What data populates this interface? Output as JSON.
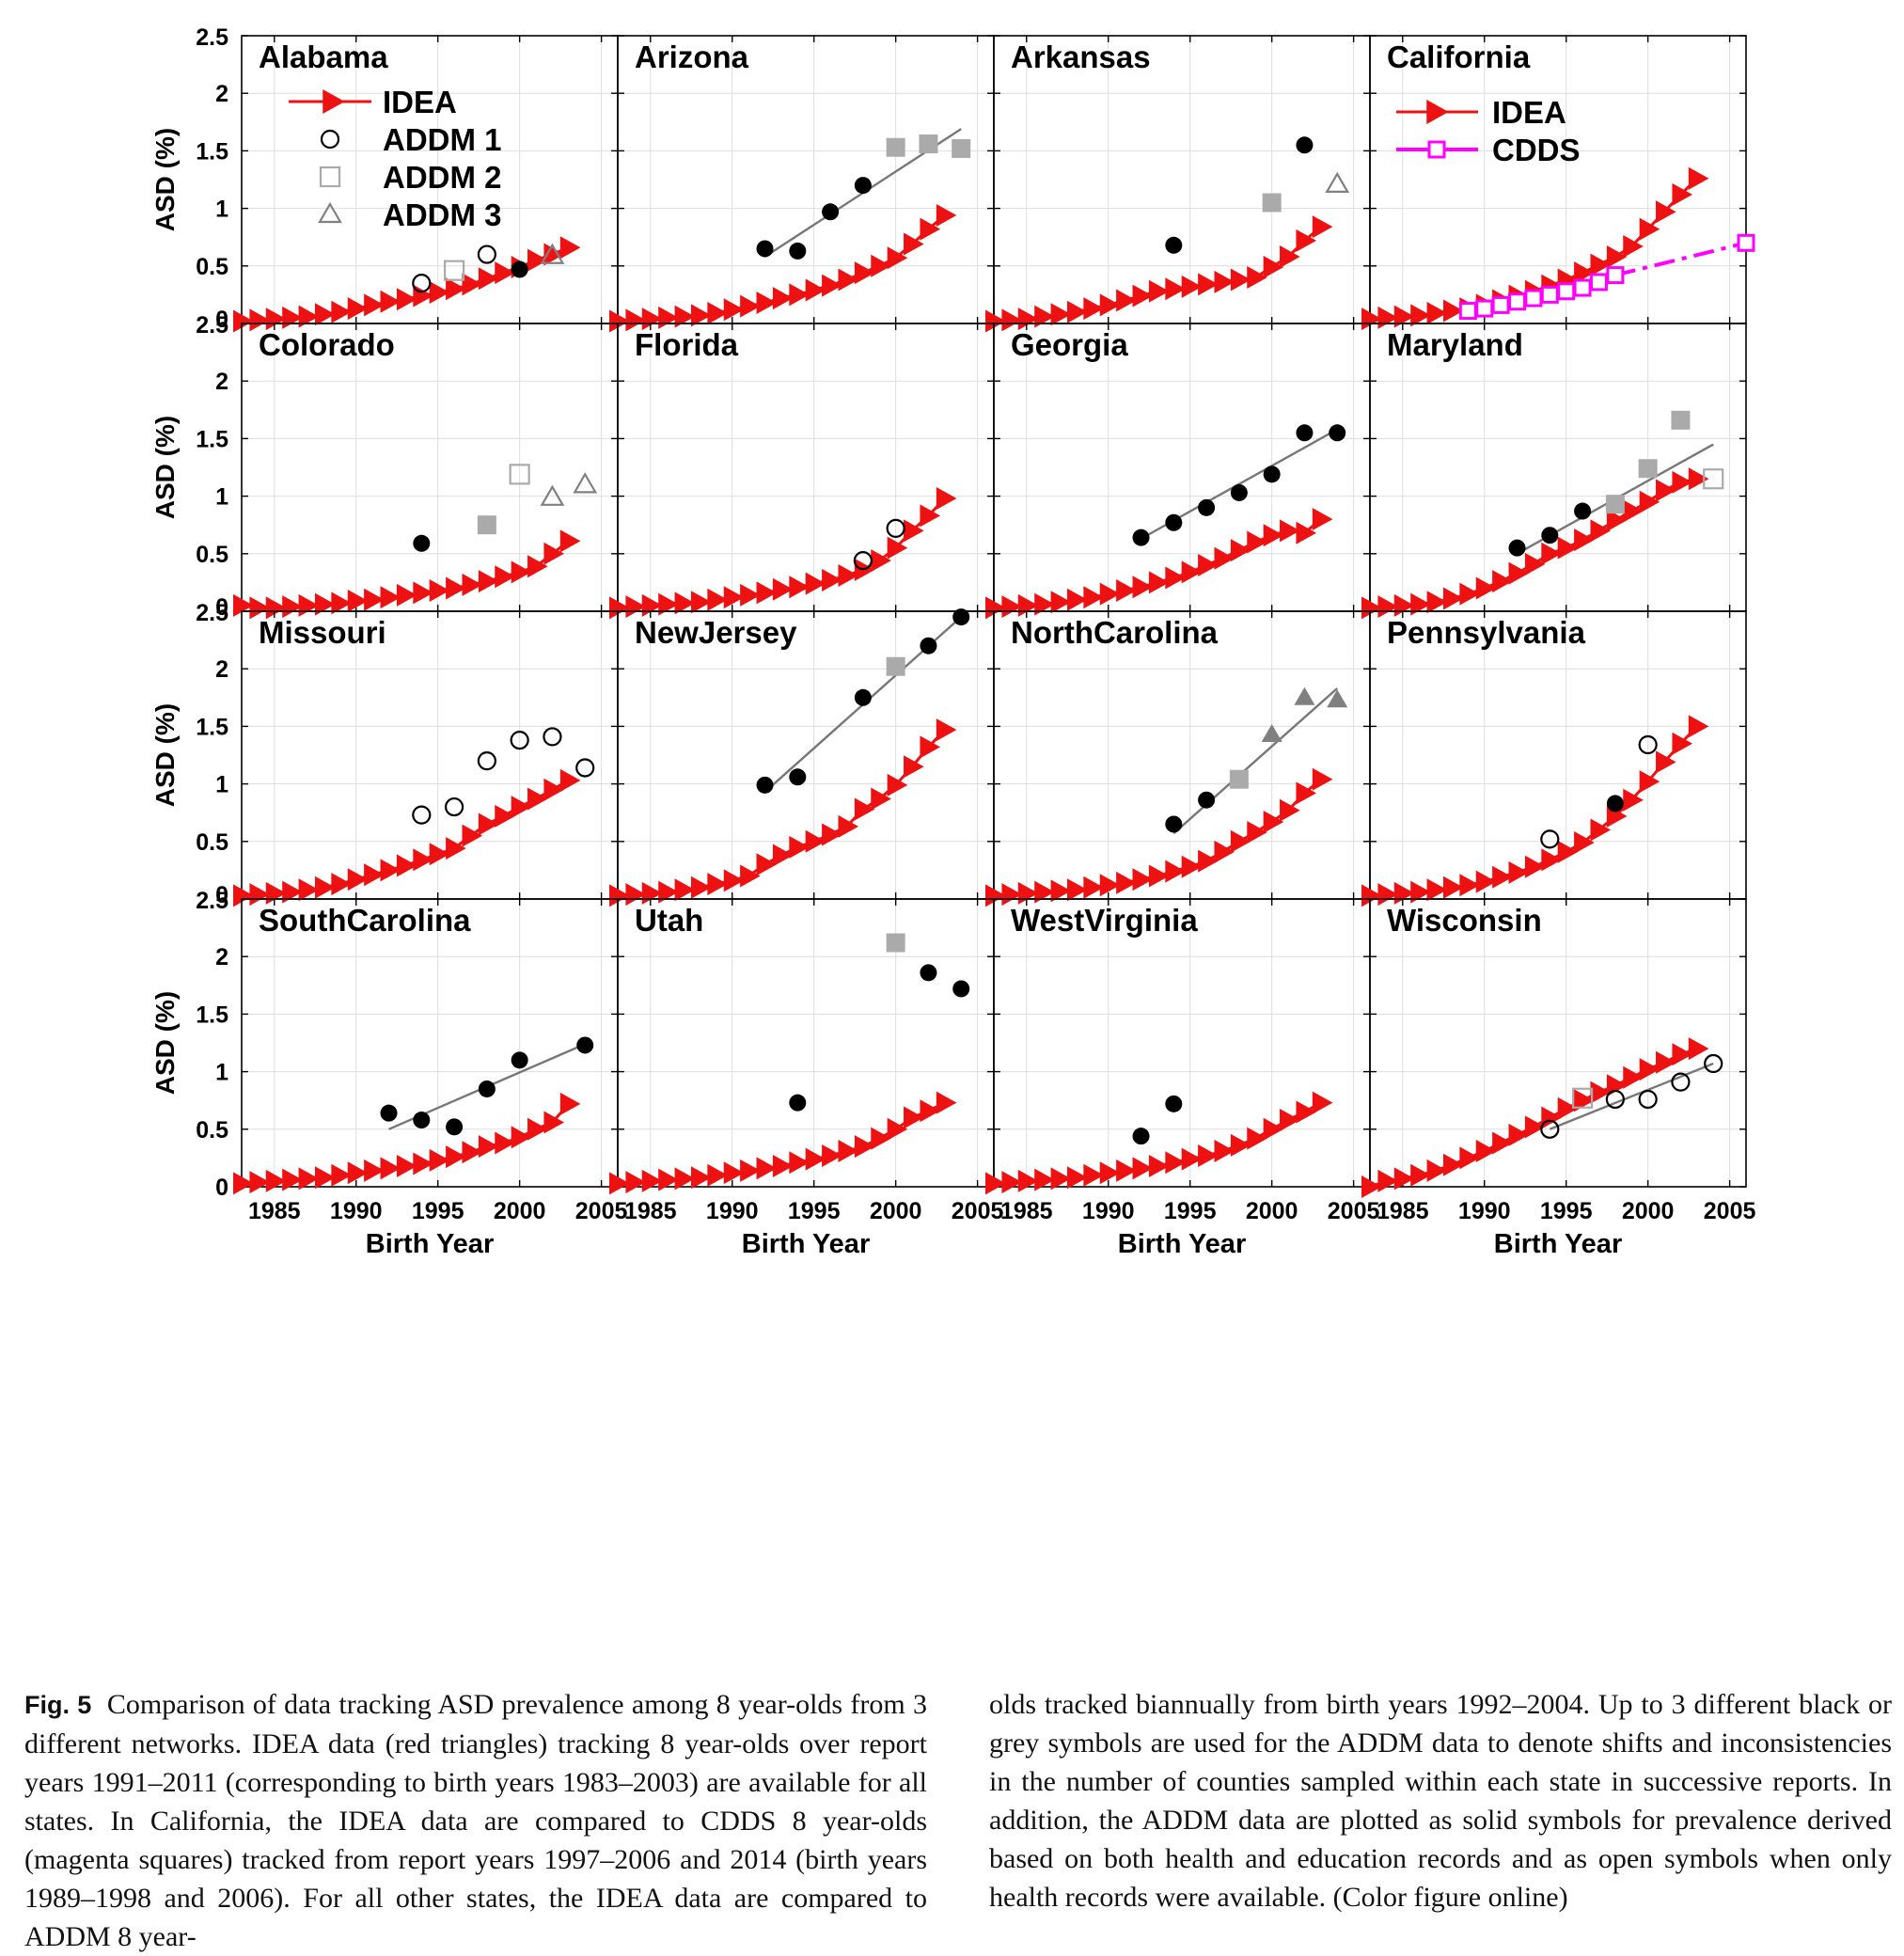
{
  "figure": {
    "label": "Fig. 5",
    "caption_left": "Comparison of data tracking ASD prevalence among 8 year-olds from 3 different networks. IDEA data (red triangles) tracking 8 year-olds over report years 1991–2011 (corresponding to birth years 1983–2003) are available for all states. In California, the IDEA data are compared to CDDS 8 year-olds (magenta squares) tracked from report years 1997–2006 and 2014 (birth years 1989–1998 and 2006). For all other states, the IDEA data are compared to ADDM 8 year-",
    "caption_right": "olds tracked biannually from birth years 1992–2004. Up to 3 different black or grey symbols are used for the ADDM data to denote shifts and inconsistencies in the number of counties sampled within each state in successive reports. In addition, the ADDM data are plotted as solid symbols for prevalence derived based on both health and education records and as open symbols when only health records were available. (Color figure online)"
  },
  "colors": {
    "idea": "#ee1111",
    "cdds": "#ff00ff",
    "addm1": "#000000",
    "addm2": "#aaaaaa",
    "addm3": "#808080",
    "trend": "#777777",
    "grid": "#dddddd"
  },
  "chart_data": {
    "type": "scatter",
    "layout": "4x4 small multiples",
    "xlabel": "Birth Year",
    "ylabel": "ASD (%)",
    "xlim": [
      1983,
      2006
    ],
    "ylim": [
      0,
      2.5
    ],
    "xticks": [
      "1985",
      "1990",
      "1995",
      "2000",
      "2005"
    ],
    "yticks": [
      "0",
      "0.5",
      "1",
      "1.5",
      "2",
      "2.5"
    ],
    "legend_labels": {
      "idea": "IDEA",
      "addm1": "ADDM 1",
      "addm2": "ADDM 2",
      "addm3": "ADDM 3",
      "cdds": "CDDS"
    },
    "idea_years": [
      1983,
      1984,
      1985,
      1986,
      1987,
      1988,
      1989,
      1990,
      1991,
      1992,
      1993,
      1994,
      1995,
      1996,
      1997,
      1998,
      1999,
      2000,
      2001,
      2002,
      2003
    ],
    "panels": [
      {
        "state": "Alabama",
        "idea": [
          0.02,
          0.03,
          0.04,
          0.05,
          0.06,
          0.08,
          0.1,
          0.13,
          0.16,
          0.19,
          0.21,
          0.24,
          0.27,
          0.3,
          0.34,
          0.39,
          0.44,
          0.49,
          0.55,
          0.6,
          0.66
        ],
        "addm": [
          {
            "x": 1994,
            "y": 0.35,
            "s": "circle",
            "f": false
          },
          {
            "x": 1996,
            "y": 0.46,
            "s": "square",
            "f": false
          },
          {
            "x": 1998,
            "y": 0.6,
            "s": "circle",
            "f": false
          },
          {
            "x": 2000,
            "y": 0.47,
            "s": "circle",
            "f": true
          },
          {
            "x": 2002,
            "y": 0.59,
            "s": "triangle",
            "f": false
          }
        ]
      },
      {
        "state": "Arizona",
        "idea": [
          0.02,
          0.03,
          0.04,
          0.05,
          0.06,
          0.07,
          0.09,
          0.12,
          0.15,
          0.18,
          0.22,
          0.25,
          0.29,
          0.33,
          0.38,
          0.44,
          0.5,
          0.57,
          0.69,
          0.82,
          0.94
        ],
        "addm": [
          {
            "x": 1992,
            "y": 0.65,
            "s": "circle",
            "f": true
          },
          {
            "x": 1994,
            "y": 0.63,
            "s": "circle",
            "f": true
          },
          {
            "x": 1996,
            "y": 0.97,
            "s": "circle",
            "f": true
          },
          {
            "x": 1998,
            "y": 1.2,
            "s": "circle",
            "f": true
          },
          {
            "x": 2000,
            "y": 1.53,
            "s": "square",
            "f": true
          },
          {
            "x": 2002,
            "y": 1.56,
            "s": "square",
            "f": true
          },
          {
            "x": 2004,
            "y": 1.52,
            "s": "square",
            "f": true
          }
        ],
        "trend": [
          [
            1992,
            0.58
          ],
          [
            2004,
            1.69
          ]
        ]
      },
      {
        "state": "Arkansas",
        "idea": [
          0.02,
          0.03,
          0.04,
          0.06,
          0.08,
          0.1,
          0.13,
          0.16,
          0.2,
          0.24,
          0.28,
          0.3,
          0.32,
          0.34,
          0.36,
          0.38,
          0.4,
          0.49,
          0.58,
          0.72,
          0.84
        ],
        "addm": [
          {
            "x": 1994,
            "y": 0.68,
            "s": "circle",
            "f": true
          },
          {
            "x": 2000,
            "y": 1.05,
            "s": "square",
            "f": true
          },
          {
            "x": 2002,
            "y": 1.55,
            "s": "circle",
            "f": true
          },
          {
            "x": 2004,
            "y": 1.21,
            "s": "triangle",
            "f": false
          }
        ]
      },
      {
        "state": "California",
        "idea": [
          0.04,
          0.05,
          0.06,
          0.07,
          0.09,
          0.11,
          0.13,
          0.16,
          0.2,
          0.24,
          0.28,
          0.33,
          0.38,
          0.44,
          0.51,
          0.58,
          0.67,
          0.82,
          0.97,
          1.12,
          1.26
        ],
        "cdds": [
          [
            1989,
            0.11
          ],
          [
            1990,
            0.13
          ],
          [
            1991,
            0.16
          ],
          [
            1992,
            0.19
          ],
          [
            1993,
            0.22
          ],
          [
            1994,
            0.25
          ],
          [
            1995,
            0.28
          ],
          [
            1996,
            0.31
          ],
          [
            1997,
            0.36
          ],
          [
            1998,
            0.42
          ],
          [
            2006,
            0.7
          ]
        ],
        "legend": "idea-cdds"
      },
      {
        "state": "Colorado",
        "idea": [
          0.05,
          0.03,
          0.03,
          0.04,
          0.05,
          0.06,
          0.07,
          0.09,
          0.1,
          0.12,
          0.14,
          0.16,
          0.18,
          0.2,
          0.23,
          0.26,
          0.3,
          0.34,
          0.39,
          0.5,
          0.61
        ],
        "addm": [
          {
            "x": 1994,
            "y": 0.59,
            "s": "circle",
            "f": true
          },
          {
            "x": 1998,
            "y": 0.75,
            "s": "square",
            "f": true
          },
          {
            "x": 2000,
            "y": 1.19,
            "s": "square",
            "f": false
          },
          {
            "x": 2002,
            "y": 0.99,
            "s": "triangle",
            "f": false
          },
          {
            "x": 2004,
            "y": 1.1,
            "s": "triangle",
            "f": false
          }
        ]
      },
      {
        "state": "Florida",
        "idea": [
          0.03,
          0.04,
          0.05,
          0.06,
          0.07,
          0.08,
          0.1,
          0.12,
          0.14,
          0.16,
          0.19,
          0.21,
          0.24,
          0.27,
          0.31,
          0.36,
          0.44,
          0.55,
          0.7,
          0.83,
          0.98
        ],
        "addm": [
          {
            "x": 1998,
            "y": 0.44,
            "s": "circle",
            "f": false
          },
          {
            "x": 2000,
            "y": 0.72,
            "s": "circle",
            "f": false
          }
        ]
      },
      {
        "state": "Georgia",
        "idea": [
          0.03,
          0.04,
          0.05,
          0.06,
          0.08,
          0.1,
          0.12,
          0.15,
          0.18,
          0.21,
          0.25,
          0.29,
          0.34,
          0.4,
          0.46,
          0.53,
          0.6,
          0.66,
          0.7,
          0.68,
          0.8
        ],
        "addm": [
          {
            "x": 1992,
            "y": 0.64,
            "s": "circle",
            "f": true
          },
          {
            "x": 1994,
            "y": 0.77,
            "s": "circle",
            "f": true
          },
          {
            "x": 1996,
            "y": 0.9,
            "s": "circle",
            "f": true
          },
          {
            "x": 1998,
            "y": 1.03,
            "s": "circle",
            "f": true
          },
          {
            "x": 2000,
            "y": 1.19,
            "s": "circle",
            "f": true
          },
          {
            "x": 2002,
            "y": 1.55,
            "s": "circle",
            "f": true
          },
          {
            "x": 2004,
            "y": 1.55,
            "s": "circle",
            "f": true
          }
        ],
        "trend": [
          [
            1992,
            0.63
          ],
          [
            2004,
            1.58
          ]
        ]
      },
      {
        "state": "Maryland",
        "idea": [
          0.03,
          0.04,
          0.05,
          0.06,
          0.08,
          0.11,
          0.15,
          0.2,
          0.26,
          0.33,
          0.41,
          0.5,
          0.55,
          0.62,
          0.7,
          0.79,
          0.87,
          0.95,
          1.05,
          1.12,
          1.15
        ],
        "addm": [
          {
            "x": 1992,
            "y": 0.55,
            "s": "circle",
            "f": true
          },
          {
            "x": 1994,
            "y": 0.66,
            "s": "circle",
            "f": true
          },
          {
            "x": 1996,
            "y": 0.87,
            "s": "circle",
            "f": true
          },
          {
            "x": 1998,
            "y": 0.93,
            "s": "square",
            "f": true
          },
          {
            "x": 2000,
            "y": 1.24,
            "s": "square",
            "f": true
          },
          {
            "x": 2002,
            "y": 1.66,
            "s": "square",
            "f": true
          },
          {
            "x": 2004,
            "y": 1.15,
            "s": "square",
            "f": false
          }
        ],
        "trend": [
          [
            1992,
            0.5
          ],
          [
            2004,
            1.45
          ]
        ]
      },
      {
        "state": "Missouri",
        "idea": [
          0.03,
          0.04,
          0.05,
          0.06,
          0.08,
          0.1,
          0.13,
          0.17,
          0.21,
          0.25,
          0.29,
          0.34,
          0.39,
          0.44,
          0.55,
          0.65,
          0.72,
          0.8,
          0.87,
          0.95,
          1.03
        ],
        "addm": [
          {
            "x": 1994,
            "y": 0.73,
            "s": "circle",
            "f": false
          },
          {
            "x": 1996,
            "y": 0.8,
            "s": "circle",
            "f": false
          },
          {
            "x": 1998,
            "y": 1.2,
            "s": "circle",
            "f": false
          },
          {
            "x": 2000,
            "y": 1.38,
            "s": "circle",
            "f": false
          },
          {
            "x": 2002,
            "y": 1.41,
            "s": "circle",
            "f": false
          },
          {
            "x": 2004,
            "y": 1.14,
            "s": "circle",
            "f": false
          }
        ]
      },
      {
        "state": "NewJersey",
        "idea": [
          0.03,
          0.04,
          0.05,
          0.06,
          0.08,
          0.1,
          0.13,
          0.16,
          0.2,
          0.3,
          0.38,
          0.45,
          0.5,
          0.56,
          0.63,
          0.78,
          0.87,
          0.99,
          1.15,
          1.32,
          1.47
        ],
        "addm": [
          {
            "x": 1992,
            "y": 0.99,
            "s": "circle",
            "f": true
          },
          {
            "x": 1994,
            "y": 1.06,
            "s": "circle",
            "f": true
          },
          {
            "x": 1998,
            "y": 1.75,
            "s": "circle",
            "f": true
          },
          {
            "x": 2000,
            "y": 2.02,
            "s": "square",
            "f": true
          },
          {
            "x": 2002,
            "y": 2.2,
            "s": "circle",
            "f": true
          },
          {
            "x": 2004,
            "y": 2.45,
            "s": "circle",
            "f": true
          }
        ],
        "trend": [
          [
            1992,
            0.93
          ],
          [
            2004,
            2.45
          ]
        ]
      },
      {
        "state": "NorthCarolina",
        "idea": [
          0.03,
          0.04,
          0.05,
          0.06,
          0.07,
          0.08,
          0.1,
          0.12,
          0.14,
          0.17,
          0.2,
          0.24,
          0.28,
          0.33,
          0.41,
          0.5,
          0.58,
          0.67,
          0.77,
          0.92,
          1.04
        ],
        "addm": [
          {
            "x": 1994,
            "y": 0.65,
            "s": "circle",
            "f": true
          },
          {
            "x": 1996,
            "y": 0.86,
            "s": "circle",
            "f": true
          },
          {
            "x": 1998,
            "y": 1.04,
            "s": "square",
            "f": true
          },
          {
            "x": 2000,
            "y": 1.43,
            "s": "triangle",
            "f": true
          },
          {
            "x": 2002,
            "y": 1.75,
            "s": "triangle",
            "f": true
          },
          {
            "x": 2004,
            "y": 1.73,
            "s": "triangle",
            "f": true
          }
        ],
        "trend": [
          [
            1994,
            0.57
          ],
          [
            2004,
            1.83
          ]
        ]
      },
      {
        "state": "Pennsylvania",
        "idea": [
          0.03,
          0.04,
          0.05,
          0.06,
          0.08,
          0.1,
          0.12,
          0.15,
          0.19,
          0.23,
          0.28,
          0.34,
          0.41,
          0.49,
          0.6,
          0.72,
          0.86,
          1.02,
          1.19,
          1.35,
          1.5
        ],
        "addm": [
          {
            "x": 1994,
            "y": 0.52,
            "s": "circle",
            "f": false
          },
          {
            "x": 1998,
            "y": 0.83,
            "s": "circle",
            "f": true
          },
          {
            "x": 2000,
            "y": 1.34,
            "s": "circle",
            "f": false
          }
        ]
      },
      {
        "state": "SouthCarolina",
        "idea": [
          0.03,
          0.04,
          0.05,
          0.06,
          0.07,
          0.08,
          0.1,
          0.12,
          0.14,
          0.16,
          0.18,
          0.2,
          0.23,
          0.26,
          0.3,
          0.35,
          0.38,
          0.43,
          0.5,
          0.56,
          0.72
        ],
        "addm": [
          {
            "x": 1992,
            "y": 0.64,
            "s": "circle",
            "f": true
          },
          {
            "x": 1994,
            "y": 0.58,
            "s": "circle",
            "f": true
          },
          {
            "x": 1996,
            "y": 0.52,
            "s": "circle",
            "f": true
          },
          {
            "x": 1998,
            "y": 0.85,
            "s": "circle",
            "f": true
          },
          {
            "x": 2000,
            "y": 1.1,
            "s": "circle",
            "f": true
          },
          {
            "x": 2004,
            "y": 1.23,
            "s": "circle",
            "f": true
          }
        ],
        "trend": [
          [
            1992,
            0.5
          ],
          [
            2004,
            1.24
          ]
        ]
      },
      {
        "state": "Utah",
        "idea": [
          0.03,
          0.04,
          0.05,
          0.06,
          0.07,
          0.08,
          0.1,
          0.12,
          0.14,
          0.16,
          0.18,
          0.21,
          0.24,
          0.27,
          0.31,
          0.35,
          0.42,
          0.5,
          0.6,
          0.66,
          0.73
        ],
        "addm": [
          {
            "x": 1994,
            "y": 0.73,
            "s": "circle",
            "f": true
          },
          {
            "x": 2000,
            "y": 2.12,
            "s": "square",
            "f": true
          },
          {
            "x": 2002,
            "y": 1.86,
            "s": "circle",
            "f": true
          },
          {
            "x": 2004,
            "y": 1.72,
            "s": "circle",
            "f": true
          }
        ]
      },
      {
        "state": "WestVirginia",
        "idea": [
          0.03,
          0.04,
          0.05,
          0.06,
          0.07,
          0.08,
          0.1,
          0.12,
          0.14,
          0.16,
          0.18,
          0.21,
          0.24,
          0.27,
          0.31,
          0.36,
          0.42,
          0.5,
          0.58,
          0.65,
          0.73
        ],
        "addm": [
          {
            "x": 1992,
            "y": 0.44,
            "s": "circle",
            "f": true
          },
          {
            "x": 1994,
            "y": 0.72,
            "s": "circle",
            "f": true
          }
        ]
      },
      {
        "state": "Wisconsin",
        "idea": [
          0.0,
          0.05,
          0.07,
          0.1,
          0.14,
          0.19,
          0.25,
          0.31,
          0.38,
          0.45,
          0.52,
          0.6,
          0.68,
          0.75,
          0.82,
          0.88,
          0.95,
          1.02,
          1.08,
          1.15,
          1.2
        ],
        "addm": [
          {
            "x": 1994,
            "y": 0.5,
            "s": "circle",
            "f": false
          },
          {
            "x": 1996,
            "y": 0.77,
            "s": "square",
            "f": false
          },
          {
            "x": 1998,
            "y": 0.76,
            "s": "circle",
            "f": false
          },
          {
            "x": 2000,
            "y": 0.76,
            "s": "circle",
            "f": false
          },
          {
            "x": 2002,
            "y": 0.91,
            "s": "circle",
            "f": false
          },
          {
            "x": 2004,
            "y": 1.07,
            "s": "circle",
            "f": false
          }
        ],
        "trend": [
          [
            1994,
            0.5
          ],
          [
            2004,
            1.07
          ]
        ]
      }
    ]
  }
}
